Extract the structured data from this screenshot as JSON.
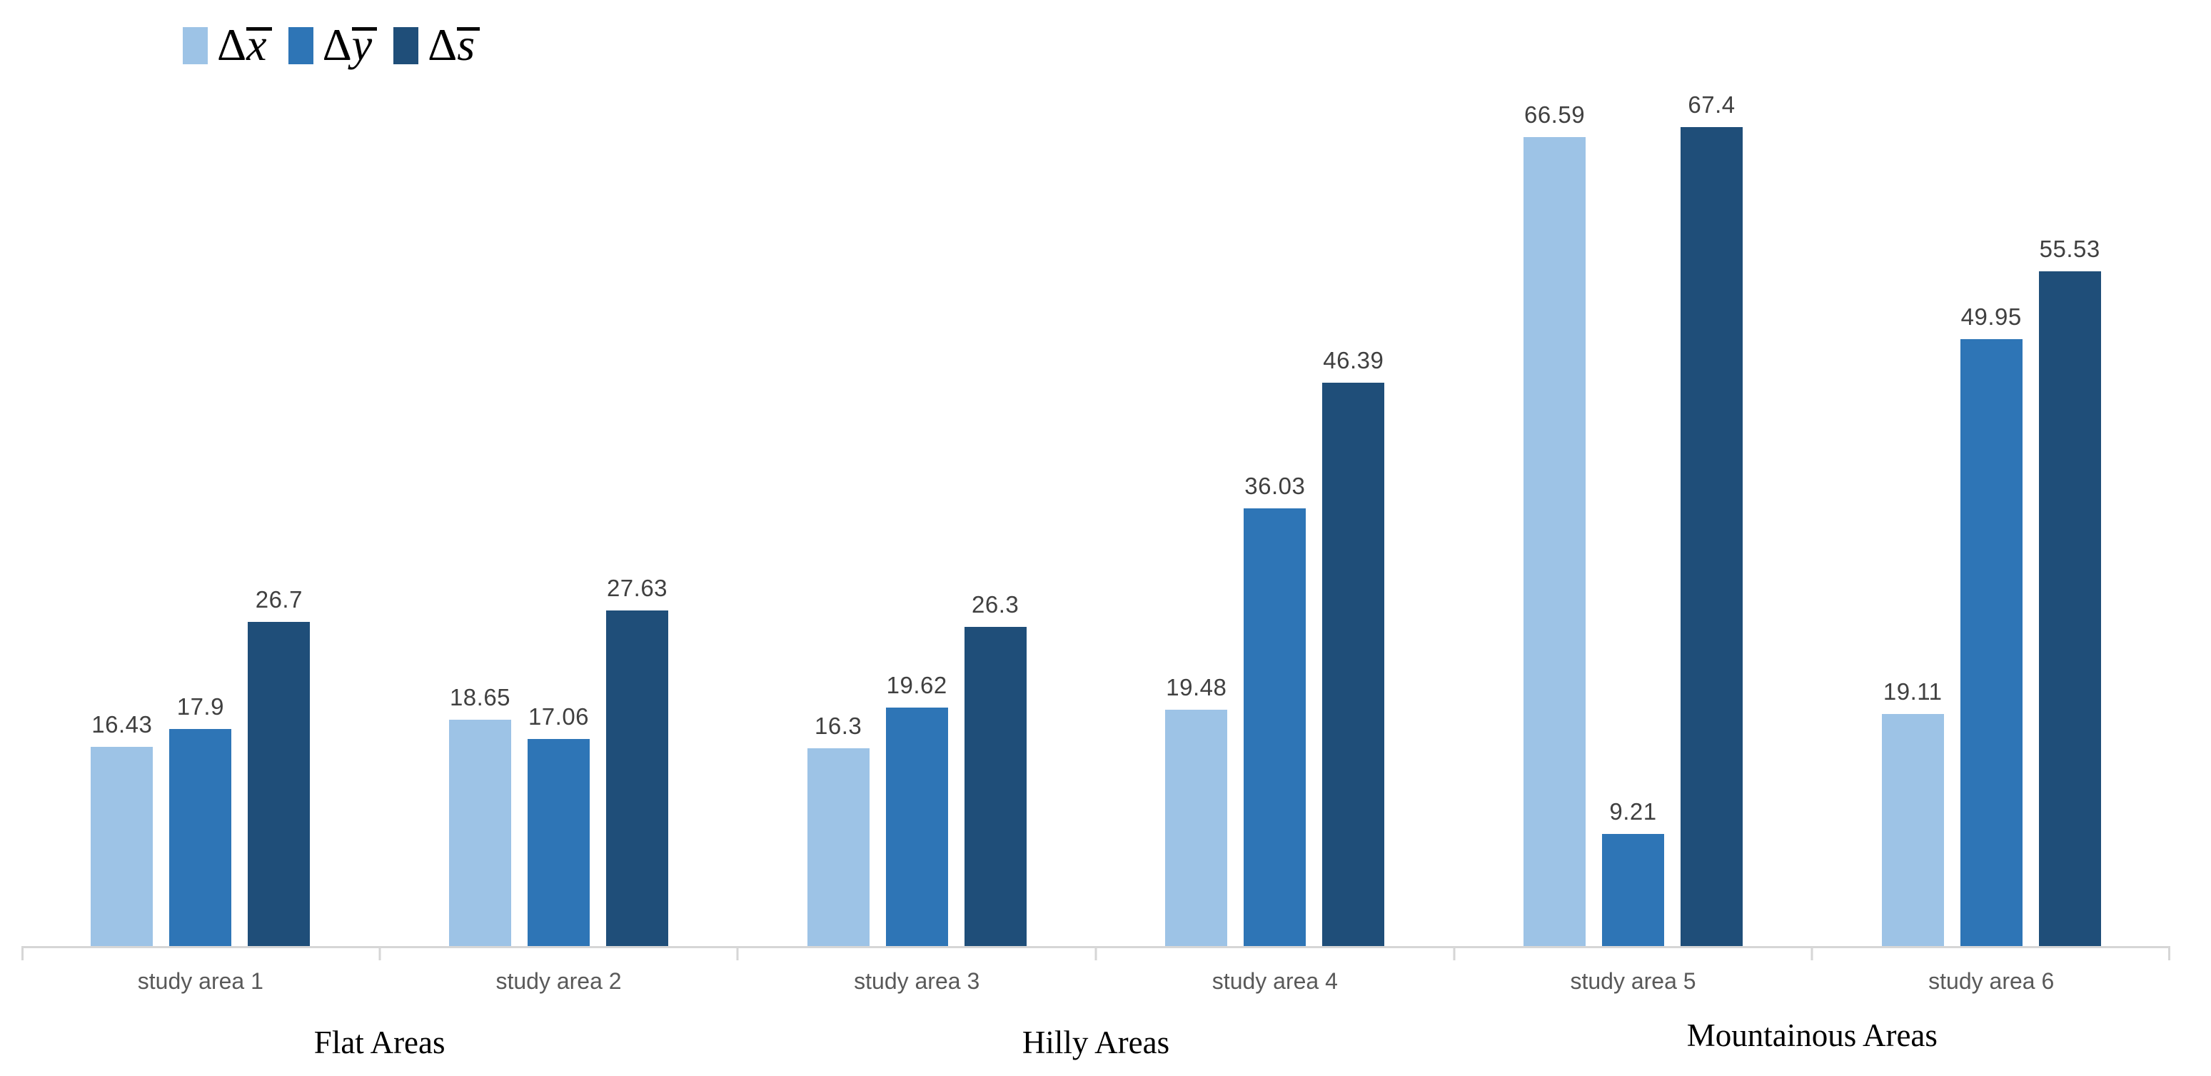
{
  "legend": {
    "items": [
      {
        "delta": "Δ",
        "variable": "x"
      },
      {
        "delta": "Δ",
        "variable": "y"
      },
      {
        "delta": "Δ",
        "variable": "s"
      }
    ]
  },
  "chart_data": {
    "type": "bar",
    "categories": [
      "study area 1",
      "study area 2",
      "study area 3",
      "study area 4",
      "study area 5",
      "study area 6"
    ],
    "group_labels": [
      "Flat Areas",
      "Hilly Areas",
      "Mountainous Areas"
    ],
    "series": [
      {
        "name": "Δx̄",
        "color": "#9DC3E6",
        "values": [
          16.43,
          18.65,
          16.3,
          19.48,
          66.59,
          19.11
        ]
      },
      {
        "name": "Δȳ",
        "color": "#2E75B6",
        "values": [
          17.9,
          17.06,
          19.62,
          36.03,
          9.21,
          49.95
        ]
      },
      {
        "name": "Δs̄",
        "color": "#1F4E79",
        "values": [
          26.7,
          27.63,
          26.3,
          46.39,
          67.4,
          55.53
        ]
      }
    ],
    "value_labels": [
      [
        "16.43",
        "17.9",
        "26.7"
      ],
      [
        "18.65",
        "17.06",
        "27.63"
      ],
      [
        "16.3",
        "19.62",
        "26.3"
      ],
      [
        "19.48",
        "36.03",
        "46.39"
      ],
      [
        "66.59",
        "9.21",
        "67.4"
      ],
      [
        "19.11",
        "49.95",
        "55.53"
      ]
    ],
    "ylim": [
      0,
      72.6
    ],
    "grid": false,
    "legend_position": "top-left",
    "axis_color": "#d6d6d6",
    "value_label_color": "#404040",
    "category_label_color": "#595959"
  }
}
